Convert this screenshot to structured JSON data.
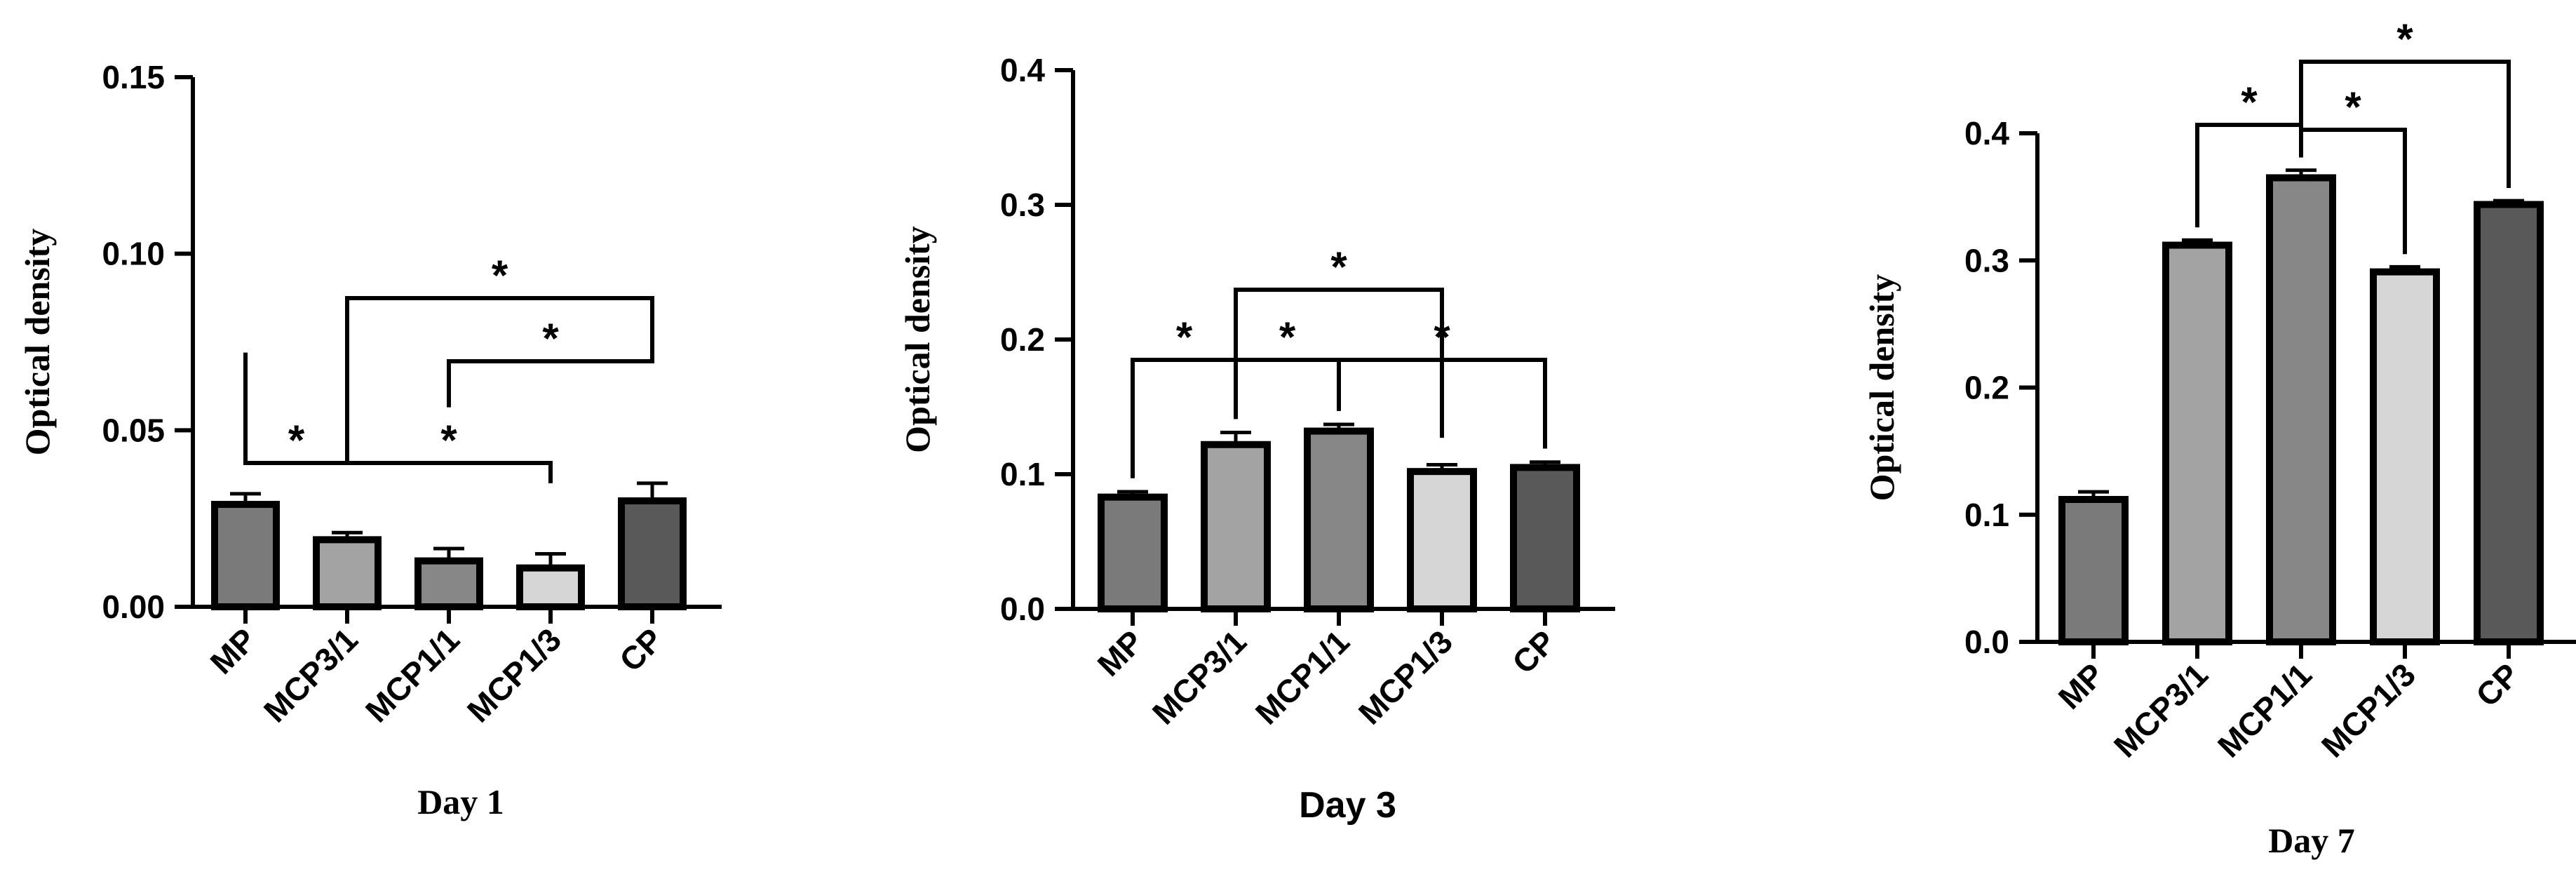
{
  "colors": {
    "MP": "#7a7a7a",
    "MCP3/1": "#a3a3a3",
    "MCP1/1": "#878787",
    "MCP1/3": "#d6d6d6",
    "CP": "#595959",
    "stroke": "#000000"
  },
  "chart_data": [
    {
      "type": "bar",
      "categories": [
        "MP",
        "MCP3/1",
        "MCP1/1",
        "MCP1/3",
        "CP"
      ],
      "values": [
        0.029,
        0.019,
        0.013,
        0.011,
        0.03
      ],
      "errors": [
        0.003,
        0.002,
        0.0035,
        0.004,
        0.005
      ],
      "ylabel": "Optical density",
      "xlabel": "Day 1",
      "ylim": [
        0,
        0.15
      ],
      "yticks": [
        "0.00",
        "0.05",
        "0.10",
        "0.15"
      ],
      "significance": [
        {
          "from": "MP",
          "to": "MCP3/1",
          "label": "*"
        },
        {
          "from": "MCP3/1",
          "to": "MCP1/3",
          "label": "*"
        },
        {
          "from": "MCP1/1",
          "to": "CP",
          "label": "*"
        },
        {
          "from": "MCP3/1",
          "to": "CP",
          "label": "*"
        }
      ]
    },
    {
      "type": "bar",
      "categories": [
        "MP",
        "MCP3/1",
        "MCP1/1",
        "MCP1/3",
        "CP"
      ],
      "values": [
        0.083,
        0.122,
        0.132,
        0.102,
        0.105
      ],
      "errors": [
        0.004,
        0.009,
        0.005,
        0.005,
        0.004
      ],
      "ylabel": "Optical density",
      "xlabel": "Day 3",
      "ylim": [
        0,
        0.4
      ],
      "yticks": [
        "0.0",
        "0.1",
        "0.2",
        "0.3",
        "0.4"
      ],
      "significance": [
        {
          "from": "MP",
          "to": "MCP3/1",
          "label": "*"
        },
        {
          "from": "MCP3/1",
          "to": "MCP1/1",
          "label": "*"
        },
        {
          "from": "MCP1/1",
          "to": "CP",
          "label": "*"
        },
        {
          "from": "MCP3/1",
          "to": "MCP1/3",
          "label": "*"
        }
      ]
    },
    {
      "type": "bar",
      "categories": [
        "MP",
        "MCP3/1",
        "MCP1/1",
        "MCP1/3",
        "CP"
      ],
      "values": [
        0.112,
        0.312,
        0.365,
        0.291,
        0.344
      ],
      "errors": [
        0.006,
        0.004,
        0.006,
        0.004,
        0.003
      ],
      "ylabel": "Optical density",
      "xlabel": "Day 7",
      "ylim": [
        0,
        0.4
      ],
      "yticks": [
        "0.0",
        "0.1",
        "0.2",
        "0.3",
        "0.4"
      ],
      "significance": [
        {
          "from": "MCP3/1",
          "to": "MCP1/1",
          "label": "*"
        },
        {
          "from": "MCP1/1",
          "to": "MCP1/3",
          "label": "*"
        },
        {
          "from": "MCP1/1",
          "to": "CP",
          "label": "*"
        }
      ]
    }
  ]
}
